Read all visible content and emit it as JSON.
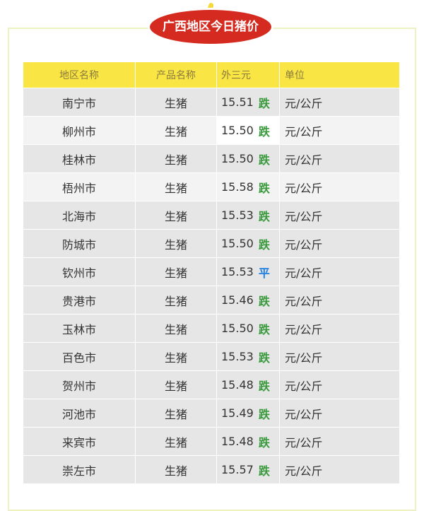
{
  "title": "广西地区今日猪价",
  "table": {
    "headers": [
      "地区名称",
      "产品名称",
      "外三元",
      "单位"
    ],
    "rows": [
      {
        "region": "南宁市",
        "product": "生猪",
        "price": "15.51",
        "trend": "跌",
        "trend_color": "#3a9a3c",
        "unit": "元/公斤"
      },
      {
        "region": "柳州市",
        "product": "生猪",
        "price": "15.50",
        "trend": "跌",
        "trend_color": "#3a9a3c",
        "unit": "元/公斤"
      },
      {
        "region": "桂林市",
        "product": "生猪",
        "price": "15.50",
        "trend": "跌",
        "trend_color": "#3a9a3c",
        "unit": "元/公斤"
      },
      {
        "region": "梧州市",
        "product": "生猪",
        "price": "15.58",
        "trend": "跌",
        "trend_color": "#3a9a3c",
        "unit": "元/公斤"
      },
      {
        "region": "北海市",
        "product": "生猪",
        "price": "15.53",
        "trend": "跌",
        "trend_color": "#3a9a3c",
        "unit": "元/公斤"
      },
      {
        "region": "防城市",
        "product": "生猪",
        "price": "15.50",
        "trend": "跌",
        "trend_color": "#3a9a3c",
        "unit": "元/公斤"
      },
      {
        "region": "钦州市",
        "product": "生猪",
        "price": "15.53",
        "trend": "平",
        "trend_color": "#1f7fe0",
        "unit": "元/公斤"
      },
      {
        "region": "贵港市",
        "product": "生猪",
        "price": "15.46",
        "trend": "跌",
        "trend_color": "#3a9a3c",
        "unit": "元/公斤"
      },
      {
        "region": "玉林市",
        "product": "生猪",
        "price": "15.50",
        "trend": "跌",
        "trend_color": "#3a9a3c",
        "unit": "元/公斤"
      },
      {
        "region": "百色市",
        "product": "生猪",
        "price": "15.53",
        "trend": "跌",
        "trend_color": "#3a9a3c",
        "unit": "元/公斤"
      },
      {
        "region": "贺州市",
        "product": "生猪",
        "price": "15.48",
        "trend": "跌",
        "trend_color": "#3a9a3c",
        "unit": "元/公斤"
      },
      {
        "region": "河池市",
        "product": "生猪",
        "price": "15.49",
        "trend": "跌",
        "trend_color": "#3a9a3c",
        "unit": "元/公斤"
      },
      {
        "region": "来宾市",
        "product": "生猪",
        "price": "15.48",
        "trend": "跌",
        "trend_color": "#3a9a3c",
        "unit": "元/公斤"
      },
      {
        "region": "崇左市",
        "product": "生猪",
        "price": "15.57",
        "trend": "跌",
        "trend_color": "#3a9a3c",
        "unit": "元/公斤"
      }
    ]
  }
}
